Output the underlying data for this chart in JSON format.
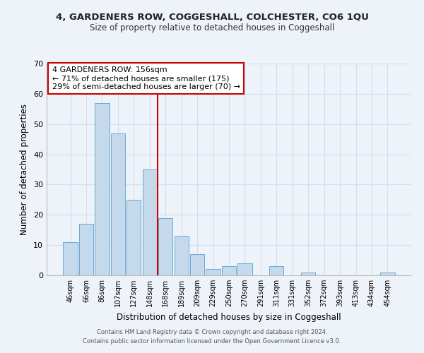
{
  "title": "4, GARDENERS ROW, COGGESHALL, COLCHESTER, CO6 1QU",
  "subtitle": "Size of property relative to detached houses in Coggeshall",
  "bar_labels": [
    "46sqm",
    "66sqm",
    "86sqm",
    "107sqm",
    "127sqm",
    "148sqm",
    "168sqm",
    "189sqm",
    "209sqm",
    "229sqm",
    "250sqm",
    "270sqm",
    "291sqm",
    "311sqm",
    "331sqm",
    "352sqm",
    "372sqm",
    "393sqm",
    "413sqm",
    "434sqm",
    "454sqm"
  ],
  "bar_values": [
    11,
    17,
    57,
    47,
    25,
    35,
    19,
    13,
    7,
    2,
    3,
    4,
    0,
    3,
    0,
    1,
    0,
    0,
    0,
    0,
    1
  ],
  "bar_color": "#c5d9ed",
  "bar_edge_color": "#6aabd2",
  "grid_color": "#d0dff0",
  "background_color": "#eef3fa",
  "ylabel": "Number of detached properties",
  "xlabel": "Distribution of detached houses by size in Coggeshall",
  "ylim": [
    0,
    70
  ],
  "yticks": [
    0,
    10,
    20,
    30,
    40,
    50,
    60,
    70
  ],
  "ref_line_color": "#cc0000",
  "annotation_line1": "4 GARDENERS ROW: 156sqm",
  "annotation_line2": "← 71% of detached houses are smaller (175)",
  "annotation_line3": "29% of semi-detached houses are larger (70) →",
  "annotation_box_color": "#ffffff",
  "annotation_border_color": "#cc0000",
  "footer_line1": "Contains HM Land Registry data © Crown copyright and database right 2024.",
  "footer_line2": "Contains public sector information licensed under the Open Government Licence v3.0."
}
